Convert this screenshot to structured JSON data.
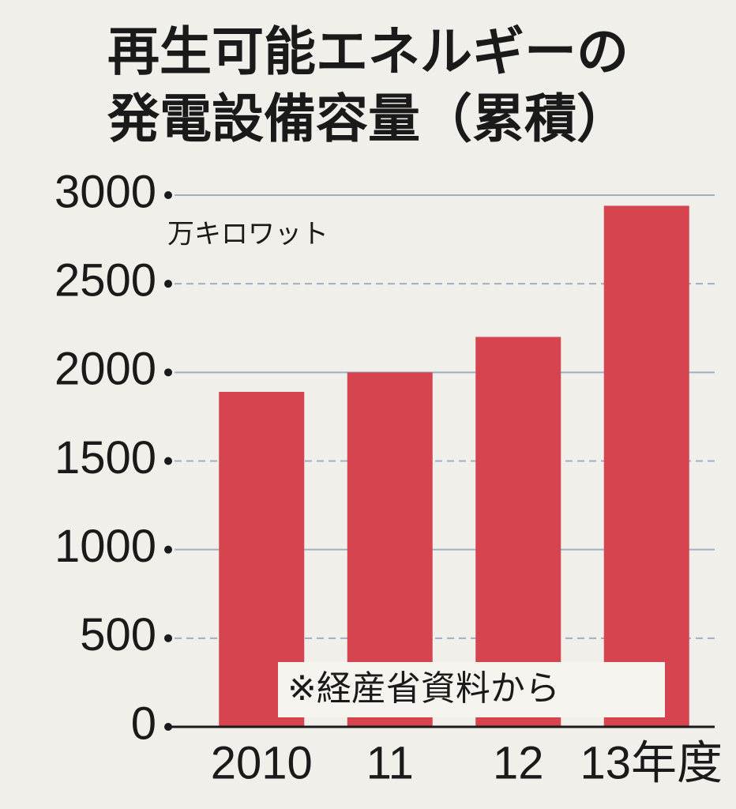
{
  "chart_data": {
    "type": "bar",
    "title": [
      "再生可能エネルギーの",
      "発電設備容量（累積）"
    ],
    "unit": "万キロワット",
    "categories": [
      "2010",
      "11",
      "12",
      "13年度"
    ],
    "values": [
      1890,
      2000,
      2200,
      2940
    ],
    "color": "#d5444f",
    "ylim": [
      0,
      3000
    ],
    "yticks": [
      0,
      500,
      1000,
      1500,
      2000,
      2500,
      3000
    ],
    "grid": true,
    "note": "※経産省資料から"
  }
}
